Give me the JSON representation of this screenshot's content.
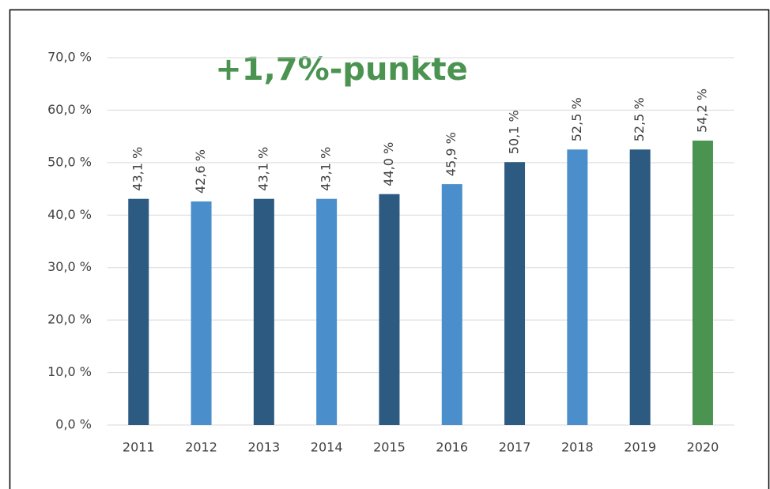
{
  "chart_data": {
    "type": "bar",
    "annotation": "+1,7%-punkte",
    "categories": [
      "2011",
      "2012",
      "2013",
      "2014",
      "2015",
      "2016",
      "2017",
      "2018",
      "2019",
      "2020"
    ],
    "values": [
      43.1,
      42.6,
      43.1,
      43.1,
      44.0,
      45.9,
      50.1,
      52.5,
      52.5,
      54.2
    ],
    "value_labels": [
      "43,1 %",
      "42,6 %",
      "43,1 %",
      "43,1 %",
      "44,0 %",
      "45,9 %",
      "50,1 %",
      "52,5 %",
      "52,5 %",
      "54,2 %"
    ],
    "colors": [
      "#2d5a80",
      "#4a8fcc",
      "#2d5a80",
      "#4a8fcc",
      "#2d5a80",
      "#4a8fcc",
      "#2d5a80",
      "#4a8fcc",
      "#2d5a80",
      "#4a9350"
    ],
    "annotation_color": "#4a9350",
    "ylim": [
      0,
      70
    ],
    "yticks": [
      {
        "value": 0,
        "label": "0,0 %"
      },
      {
        "value": 10,
        "label": "10,0 %"
      },
      {
        "value": 20,
        "label": "20,0 %"
      },
      {
        "value": 30,
        "label": "30,0 %"
      },
      {
        "value": 40,
        "label": "40,0 %"
      },
      {
        "value": 50,
        "label": "50,0 %"
      },
      {
        "value": 60,
        "label": "60,0 %"
      },
      {
        "value": 70,
        "label": "70,0 %"
      }
    ],
    "grid": true
  }
}
